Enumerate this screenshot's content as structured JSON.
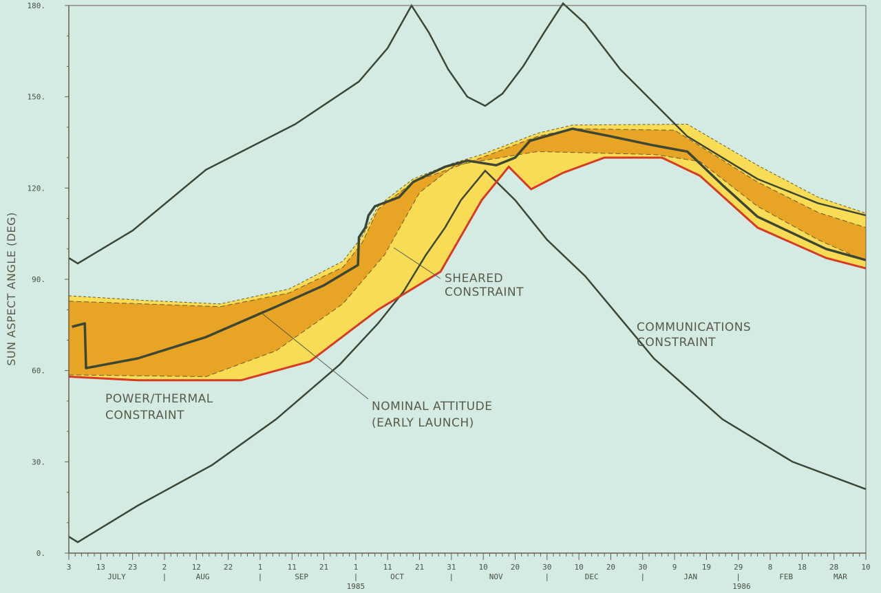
{
  "chart_data": {
    "type": "line",
    "ylabel": "SUN ASPECT ANGLE (DEG)",
    "xlabel": "",
    "ylim": [
      0,
      180
    ],
    "xlim_days_from_jul3_1985": [
      0,
      250
    ],
    "y_ticks": [
      0,
      30,
      60,
      90,
      120,
      150,
      180
    ],
    "y_tick_labels": [
      "0.",
      "30.",
      "60.",
      "90.",
      "120.",
      "150.",
      "180."
    ],
    "x_tick_labels": [
      {
        "d": 0,
        "t": "3"
      },
      {
        "d": 10,
        "t": "13"
      },
      {
        "d": 20,
        "t": "23"
      },
      {
        "d": 30,
        "t": "2"
      },
      {
        "d": 40,
        "t": "12"
      },
      {
        "d": 50,
        "t": "22"
      },
      {
        "d": 60,
        "t": "1"
      },
      {
        "d": 70,
        "t": "11"
      },
      {
        "d": 80,
        "t": "21"
      },
      {
        "d": 90,
        "t": "1"
      },
      {
        "d": 100,
        "t": "11"
      },
      {
        "d": 110,
        "t": "21"
      },
      {
        "d": 120,
        "t": "31"
      },
      {
        "d": 130,
        "t": "10"
      },
      {
        "d": 140,
        "t": "20"
      },
      {
        "d": 150,
        "t": "30"
      },
      {
        "d": 160,
        "t": "10"
      },
      {
        "d": 170,
        "t": "20"
      },
      {
        "d": 180,
        "t": "30"
      },
      {
        "d": 190,
        "t": "9"
      },
      {
        "d": 200,
        "t": "19"
      },
      {
        "d": 210,
        "t": "29"
      },
      {
        "d": 220,
        "t": "8"
      },
      {
        "d": 230,
        "t": "18"
      },
      {
        "d": 240,
        "t": "28"
      },
      {
        "d": 250,
        "t": "10"
      }
    ],
    "month_labels": [
      {
        "d": 15,
        "t": "JULY"
      },
      {
        "d": 42,
        "t": "AUG"
      },
      {
        "d": 73,
        "t": "SEP"
      },
      {
        "d": 103,
        "t": "OCT"
      },
      {
        "d": 134,
        "t": "NOV"
      },
      {
        "d": 164,
        "t": "DEC"
      },
      {
        "d": 195,
        "t": "JAN"
      },
      {
        "d": 225,
        "t": "FEB"
      },
      {
        "d": 242,
        "t": "MAR"
      }
    ],
    "month_separators": [
      30,
      60,
      90,
      120,
      150,
      180,
      210
    ],
    "year_labels": [
      {
        "d": 90,
        "t": "1985"
      },
      {
        "d": 211,
        "t": "1986"
      }
    ],
    "series": [
      {
        "name": "Communications constraint (upper)",
        "role": "comms",
        "points": [
          [
            0,
            97
          ],
          [
            2.8,
            95.2
          ],
          [
            20,
            106
          ],
          [
            43,
            126
          ],
          [
            71,
            141
          ],
          [
            91,
            155
          ],
          [
            100,
            166
          ],
          [
            107.5,
            180
          ],
          [
            113,
            171
          ],
          [
            119,
            159
          ],
          [
            125,
            150
          ],
          [
            130.6,
            147
          ],
          [
            136,
            151
          ],
          [
            142.5,
            160
          ],
          [
            149,
            171
          ],
          [
            155,
            180.7
          ],
          [
            162,
            174
          ],
          [
            173,
            159
          ],
          [
            194,
            137
          ],
          [
            216,
            123
          ],
          [
            235,
            115
          ],
          [
            250,
            111
          ]
        ]
      },
      {
        "name": "Communications constraint (lower)",
        "role": "comms",
        "points": [
          [
            0,
            5.4
          ],
          [
            2.8,
            3.6
          ],
          [
            21.6,
            15.6
          ],
          [
            45,
            29
          ],
          [
            65,
            44
          ],
          [
            85,
            62
          ],
          [
            97,
            75.5
          ],
          [
            105,
            86
          ],
          [
            112,
            98
          ],
          [
            118,
            107
          ],
          [
            123,
            116
          ],
          [
            130.6,
            125.7
          ],
          [
            140,
            116
          ],
          [
            150,
            103
          ],
          [
            162,
            91
          ],
          [
            183.5,
            64
          ],
          [
            205,
            44
          ],
          [
            227,
            30
          ],
          [
            250,
            21
          ]
        ]
      },
      {
        "name": "Power/thermal constraint",
        "role": "red",
        "points": [
          [
            0,
            58
          ],
          [
            21.6,
            56.8
          ],
          [
            54,
            56.8
          ],
          [
            75.6,
            63
          ],
          [
            97,
            80
          ],
          [
            116.6,
            92.5
          ],
          [
            124,
            106
          ],
          [
            129.5,
            116
          ],
          [
            138,
            127
          ],
          [
            145,
            119.6
          ],
          [
            155,
            125
          ],
          [
            168,
            130
          ],
          [
            186,
            130
          ],
          [
            198,
            124
          ],
          [
            216,
            107
          ],
          [
            237.5,
            97
          ],
          [
            250,
            93.6
          ]
        ]
      },
      {
        "name": "Sheared constraint band (outer)",
        "role": "yellow-top",
        "points": [
          [
            0,
            84.6
          ],
          [
            25,
            83
          ],
          [
            47.5,
            81.9
          ],
          [
            69,
            86.8
          ],
          [
            86,
            96
          ],
          [
            92,
            104
          ],
          [
            97,
            114
          ],
          [
            103,
            119
          ],
          [
            108,
            123
          ],
          [
            120,
            128
          ],
          [
            129.5,
            131
          ],
          [
            147,
            138
          ],
          [
            158,
            140.7
          ],
          [
            194,
            141
          ],
          [
            216,
            127.5
          ],
          [
            235,
            117
          ],
          [
            250,
            111.7
          ]
        ]
      },
      {
        "name": "Sheared constraint band (inner top)",
        "role": "orange-top",
        "points": [
          [
            0,
            82.8
          ],
          [
            47.5,
            81
          ],
          [
            69,
            85.5
          ],
          [
            86,
            94
          ],
          [
            92,
            102
          ],
          [
            97,
            113
          ],
          [
            108,
            122
          ],
          [
            129.5,
            130
          ],
          [
            147,
            137
          ],
          [
            158,
            139.5
          ],
          [
            190,
            139
          ],
          [
            216,
            122
          ],
          [
            235,
            112
          ],
          [
            250,
            107
          ]
        ]
      },
      {
        "name": "Sheared constraint band (inner bottom)",
        "role": "orange-bottom",
        "points": [
          [
            0,
            58.6
          ],
          [
            43,
            58
          ],
          [
            65,
            66.5
          ],
          [
            86,
            82
          ],
          [
            99,
            98
          ],
          [
            110,
            118.5
          ],
          [
            121,
            127.5
          ],
          [
            147,
            132
          ],
          [
            184,
            131
          ],
          [
            198,
            128.7
          ],
          [
            216,
            114
          ],
          [
            235,
            103
          ],
          [
            250,
            96
          ]
        ]
      },
      {
        "name": "Nominal attitude (early launch)",
        "role": "nominal",
        "points": [
          [
            1,
            74.4
          ],
          [
            5,
            75.5
          ],
          [
            5.4,
            60.8
          ],
          [
            21.6,
            64
          ],
          [
            43,
            71
          ],
          [
            65,
            81
          ],
          [
            80,
            88
          ],
          [
            90.7,
            94.7
          ],
          [
            91,
            103.8
          ],
          [
            93,
            107
          ],
          [
            94,
            111
          ],
          [
            96,
            114
          ],
          [
            103.6,
            117
          ],
          [
            108,
            122
          ],
          [
            112,
            124
          ],
          [
            118,
            127
          ],
          [
            125,
            129
          ],
          [
            134,
            127.5
          ],
          [
            140,
            130
          ],
          [
            144.6,
            135.5
          ],
          [
            158,
            139.5
          ],
          [
            170,
            137
          ],
          [
            183.5,
            134
          ],
          [
            194,
            132
          ],
          [
            205,
            121
          ],
          [
            216,
            110.6
          ],
          [
            237.5,
            100
          ],
          [
            250,
            96.3
          ]
        ]
      }
    ]
  },
  "annotations": {
    "sheared": [
      "SHEARED",
      "CONSTRAINT"
    ],
    "comms": [
      "COMMUNICATIONS",
      "CONSTRAINT"
    ],
    "power": [
      "POWER/THERMAL",
      "CONSTRAINT"
    ],
    "nominal": [
      "NOMINAL ATTITUDE",
      "(EARLY LAUNCH)"
    ]
  },
  "colors": {
    "background": "#d4ebe3",
    "line": "#3c4634",
    "orange": "#e8a424",
    "yellow": "#f9dc55",
    "red": "#d63a22"
  }
}
